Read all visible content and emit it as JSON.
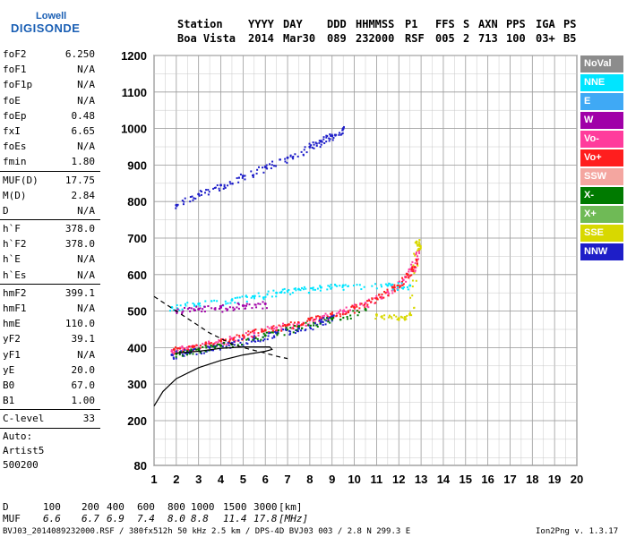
{
  "logo": {
    "line1": "Lowell",
    "line2": "DIGISONDE"
  },
  "header": {
    "row1": [
      "Station",
      "YYYY",
      "DAY",
      "DDD",
      "HHMMSS",
      "P1",
      "FFS",
      "S",
      "AXN",
      "PPS",
      "IGA",
      "PS"
    ],
    "row2": [
      "Boa Vista",
      "2014",
      "Mar30",
      "089",
      "232000",
      "RSF",
      "005",
      "2",
      "713",
      "100",
      "03+",
      "B5"
    ]
  },
  "params": {
    "group1": [
      {
        "name": "foF2",
        "value": "6.250"
      },
      {
        "name": "foF1",
        "value": "N/A"
      },
      {
        "name": "foF1p",
        "value": "N/A"
      },
      {
        "name": "foE",
        "value": "N/A"
      },
      {
        "name": "foEp",
        "value": "0.48"
      },
      {
        "name": "fxI",
        "value": "6.65"
      },
      {
        "name": "foEs",
        "value": "N/A"
      },
      {
        "name": "fmin",
        "value": "1.80"
      }
    ],
    "group2": [
      {
        "name": "MUF(D)",
        "value": "17.75"
      },
      {
        "name": "M(D)",
        "value": "2.84"
      },
      {
        "name": "D",
        "value": "N/A"
      }
    ],
    "group3": [
      {
        "name": "h`F",
        "value": "378.0"
      },
      {
        "name": "h`F2",
        "value": "378.0"
      },
      {
        "name": "h`E",
        "value": "N/A"
      },
      {
        "name": "h`Es",
        "value": "N/A"
      }
    ],
    "group4": [
      {
        "name": "hmF2",
        "value": "399.1"
      },
      {
        "name": "hmF1",
        "value": "N/A"
      },
      {
        "name": "hmE",
        "value": "110.0"
      },
      {
        "name": "yF2",
        "value": "39.1"
      },
      {
        "name": "yF1",
        "value": "N/A"
      },
      {
        "name": "yE",
        "value": "20.0"
      },
      {
        "name": "B0",
        "value": "67.0"
      },
      {
        "name": "B1",
        "value": "1.00"
      }
    ],
    "group5": [
      {
        "name": "C-level",
        "value": "33"
      }
    ],
    "auto": [
      "Auto:",
      "Artist5",
      "500200"
    ]
  },
  "legend": [
    {
      "label": "NoVal",
      "color": "#8c8c8c"
    },
    {
      "label": "NNE",
      "color": "#00e5ff"
    },
    {
      "label": "E",
      "color": "#3fa9f5"
    },
    {
      "label": "W",
      "color": "#a000a8"
    },
    {
      "label": "Vo-",
      "color": "#ff3c9c"
    },
    {
      "label": "Vo+",
      "color": "#ff1e1e"
    },
    {
      "label": "SSW",
      "color": "#f4a6a0"
    },
    {
      "label": "X-",
      "color": "#007a00"
    },
    {
      "label": "X+",
      "color": "#6fba56"
    },
    {
      "label": "SSE",
      "color": "#d8d800"
    },
    {
      "label": "NNW",
      "color": "#1e1ec8"
    }
  ],
  "footer": {
    "d_label": "D",
    "d_values": [
      "100",
      "200",
      "400",
      "600",
      "800",
      "1000",
      "1500",
      "3000",
      "[km]"
    ],
    "muf_label": "MUF",
    "muf_values": [
      "6.6",
      "6.7",
      "6.9",
      "7.4",
      "8.0",
      "8.8",
      "11.4",
      "17.8",
      "[MHz]"
    ],
    "file_info": "BVJ03_2014089232000.RSF / 380fx512h 50 kHz 2.5 km / DPS-4D BVJ03 003 / 2.8 N 299.3 E",
    "version": "Ion2Png v. 1.3.17"
  },
  "chart_data": {
    "type": "scatter",
    "xlim": [
      1,
      20
    ],
    "ylim": [
      80,
      1200
    ],
    "x_ticks": [
      1,
      2,
      3,
      4,
      5,
      6,
      7,
      8,
      9,
      10,
      11,
      12,
      13,
      14,
      15,
      16,
      17,
      18,
      19,
      20
    ],
    "y_ticks": [
      80,
      200,
      300,
      400,
      500,
      600,
      700,
      800,
      900,
      1000,
      1100,
      1200
    ],
    "grid": true,
    "legend_position": "right",
    "series": [
      {
        "legend_index": 4,
        "points": [
          [
            1.8,
            390
          ],
          [
            2.5,
            400
          ],
          [
            3.5,
            412
          ],
          [
            4.5,
            425
          ],
          [
            5.5,
            440
          ],
          [
            6.5,
            455
          ],
          [
            7.5,
            468
          ],
          [
            8.5,
            482
          ],
          [
            9.5,
            500
          ],
          [
            10.5,
            522
          ],
          [
            11.5,
            552
          ],
          [
            12.2,
            585
          ],
          [
            12.6,
            620
          ],
          [
            12.9,
            665
          ]
        ]
      },
      {
        "legend_index": 5,
        "points": [
          [
            1.9,
            395
          ],
          [
            2.8,
            403
          ],
          [
            4.0,
            418
          ],
          [
            5.0,
            433
          ],
          [
            6.0,
            448
          ],
          [
            7.0,
            462
          ],
          [
            8.0,
            476
          ],
          [
            9.0,
            490
          ],
          [
            10.0,
            510
          ],
          [
            11.0,
            535
          ],
          [
            11.8,
            565
          ],
          [
            12.4,
            600
          ],
          [
            12.8,
            640
          ]
        ]
      },
      {
        "legend_index": 10,
        "points": [
          [
            1.8,
            380
          ],
          [
            2.5,
            388
          ],
          [
            3.5,
            400
          ],
          [
            4.5,
            412
          ],
          [
            5.5,
            425
          ],
          [
            6.5,
            440
          ],
          [
            7.5,
            452
          ],
          [
            8.5,
            470
          ],
          [
            9.0,
            485
          ]
        ]
      },
      {
        "legend_index": 7,
        "points": [
          [
            2.0,
            383
          ],
          [
            3.0,
            395
          ],
          [
            4.0,
            405
          ],
          [
            6.0,
            433
          ],
          [
            7.5,
            458
          ],
          [
            9.0,
            478
          ],
          [
            10.5,
            505
          ]
        ]
      },
      {
        "legend_index": 1,
        "points": [
          [
            1.8,
            510
          ],
          [
            3.0,
            520
          ],
          [
            4.5,
            530
          ],
          [
            5.5,
            540
          ],
          [
            6.5,
            550
          ],
          [
            7.5,
            560
          ],
          [
            8.5,
            565
          ],
          [
            9.5,
            570
          ],
          [
            11.5,
            570
          ],
          [
            12.5,
            570
          ]
        ]
      },
      {
        "legend_index": 3,
        "points": [
          [
            2.0,
            500
          ],
          [
            3.0,
            505
          ],
          [
            4.0,
            510
          ],
          [
            5.0,
            515
          ],
          [
            6.0,
            520
          ]
        ]
      },
      {
        "legend_index": 10,
        "points": [
          [
            2.0,
            790
          ],
          [
            3.0,
            820
          ],
          [
            4.0,
            845
          ],
          [
            5.0,
            870
          ],
          [
            6.0,
            895
          ],
          [
            7.0,
            920
          ],
          [
            8.0,
            950
          ],
          [
            8.5,
            965
          ],
          [
            9.0,
            980
          ],
          [
            9.5,
            1000
          ]
        ]
      },
      {
        "legend_index": 9,
        "points": [
          [
            11.0,
            490
          ],
          [
            12.0,
            480
          ],
          [
            12.5,
            490
          ],
          [
            12.8,
            690
          ],
          [
            12.9,
            670
          ]
        ]
      }
    ],
    "model_curves": [
      {
        "style": "solid",
        "points": [
          [
            1,
            240
          ],
          [
            1.4,
            280
          ],
          [
            2,
            315
          ],
          [
            3,
            345
          ],
          [
            4,
            365
          ],
          [
            5,
            380
          ],
          [
            6,
            390
          ],
          [
            6.3,
            395
          ],
          [
            6.2,
            402
          ],
          [
            5,
            402
          ],
          [
            4,
            398
          ],
          [
            3,
            390
          ],
          [
            2,
            385
          ]
        ]
      },
      {
        "style": "dashed",
        "points": [
          [
            1,
            540
          ],
          [
            1.5,
            520
          ],
          [
            2,
            500
          ],
          [
            2.5,
            480
          ],
          [
            3,
            460
          ],
          [
            3.5,
            440
          ],
          [
            4,
            425
          ],
          [
            4.5,
            410
          ],
          [
            5,
            400
          ],
          [
            6,
            385
          ],
          [
            6.6,
            375
          ],
          [
            7,
            370
          ]
        ]
      }
    ]
  }
}
